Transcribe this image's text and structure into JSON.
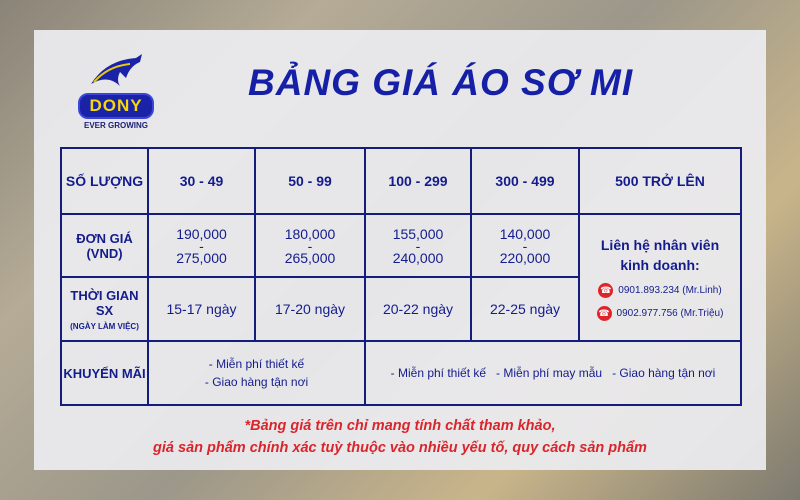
{
  "logo": {
    "brand": "DONY",
    "tagline": "EVER GROWING"
  },
  "title": "BẢNG GIÁ ÁO SƠ MI",
  "table": {
    "headers": [
      "SỐ LƯỢNG",
      "30 - 49",
      "50 - 99",
      "100 - 299",
      "300 - 499",
      "500 TRỞ LÊN"
    ],
    "price_label": "ĐƠN GIÁ",
    "price_unit": "(VND)",
    "prices": [
      [
        "190,000",
        "275,000"
      ],
      [
        "180,000",
        "265,000"
      ],
      [
        "155,000",
        "240,000"
      ],
      [
        "140,000",
        "220,000"
      ]
    ],
    "time_label": "THỜI GIAN SX",
    "time_sub": "(NGÀY LÀM VIỆC)",
    "times": [
      "15-17 ngày",
      "17-20 ngày",
      "20-22 ngày",
      "22-25 ngày"
    ],
    "contact": {
      "line1": "Liên hệ nhân viên",
      "line2": "kinh doanh:",
      "phones": [
        "0901.893.234 (Mr.Linh)",
        "0902.977.756 (Mr.Triệu)"
      ]
    },
    "promo_label": "KHUYẾN MÃI",
    "promo_a": [
      "- Miễn phí thiết kế",
      "- Giao hàng tận nơi"
    ],
    "promo_b": "- Miễn phí thiết kế   - Miễn phí may mẫu   - Giao hàng tận nơi"
  },
  "note": {
    "line1": "*Bảng giá trên chỉ mang tính chất tham khảo,",
    "line2": "giá sản phẩm chính xác tuỳ thuộc vào nhiều yếu tố, quy cách sản phẩm"
  },
  "colors": {
    "primary": "#1620a6",
    "accent": "#d8262c",
    "logo_yellow": "#f5d70a"
  }
}
